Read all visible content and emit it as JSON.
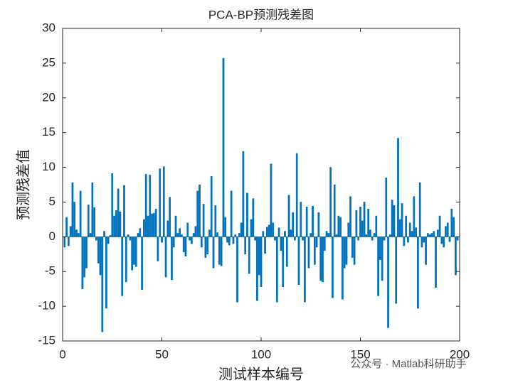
{
  "chart_data": {
    "type": "bar",
    "title": "PCA-BP预测残差图",
    "xlabel": "测试样本编号",
    "ylabel": "预测残差值",
    "watermark": "公众号 · Matlab科研助手",
    "color": "#0072BD",
    "x": [
      1,
      2,
      3,
      4,
      5,
      6,
      7,
      8,
      9,
      10,
      11,
      12,
      13,
      14,
      15,
      16,
      17,
      18,
      19,
      20,
      21,
      22,
      23,
      24,
      25,
      26,
      27,
      28,
      29,
      30,
      31,
      32,
      33,
      34,
      35,
      36,
      37,
      38,
      39,
      40,
      41,
      42,
      43,
      44,
      45,
      46,
      47,
      48,
      49,
      50,
      51,
      52,
      53,
      54,
      55,
      56,
      57,
      58,
      59,
      60,
      61,
      62,
      63,
      64,
      65,
      66,
      67,
      68,
      69,
      70,
      71,
      72,
      73,
      74,
      75,
      76,
      77,
      78,
      79,
      80,
      81,
      82,
      83,
      84,
      85,
      86,
      87,
      88,
      89,
      90,
      91,
      92,
      93,
      94,
      95,
      96,
      97,
      98,
      99,
      100,
      101,
      102,
      103,
      104,
      105,
      106,
      107,
      108,
      109,
      110,
      111,
      112,
      113,
      114,
      115,
      116,
      117,
      118,
      119,
      120,
      121,
      122,
      123,
      124,
      125,
      126,
      127,
      128,
      129,
      130,
      131,
      132,
      133,
      134,
      135,
      136,
      137,
      138,
      139,
      140,
      141,
      142,
      143,
      144,
      145,
      146,
      147,
      148,
      149,
      150,
      151,
      152,
      153,
      154,
      155,
      156,
      157,
      158,
      159,
      160,
      161,
      162,
      163,
      164,
      165,
      166,
      167,
      168,
      169,
      170,
      171,
      172,
      173,
      174,
      175,
      176,
      177,
      178,
      179,
      180,
      181,
      182,
      183,
      184,
      185,
      186,
      187,
      188,
      189,
      190,
      191,
      192,
      193,
      194,
      195,
      196,
      197,
      198,
      199,
      200
    ],
    "values": [
      -1.5,
      2.8,
      -1.3,
      1.5,
      7.8,
      5,
      1,
      0.5,
      6.6,
      -7.5,
      -5.8,
      -4.5,
      4.6,
      0.5,
      7.8,
      4.2,
      -0.5,
      -3.8,
      -5.5,
      -13.7,
      0.8,
      -10.3,
      -1,
      0.2,
      9.1,
      3,
      3.8,
      6.9,
      3.6,
      -8.5,
      7.4,
      -6.5,
      0.3,
      -0.5,
      -4.8,
      -4,
      -4.3,
      0.5,
      1.2,
      -7.6,
      2.5,
      9,
      3,
      8.9,
      3.3,
      3.4,
      4,
      -3.5,
      9.8,
      -0.8,
      10.1,
      -5.8,
      2.3,
      5.7,
      -6.2,
      -1.5,
      3,
      0.5,
      1.2,
      0.3,
      -2.2,
      -2.8,
      2,
      -0.5,
      -1,
      0.5,
      1.5,
      6.6,
      7.5,
      -1.5,
      4.7,
      -3,
      -2.5,
      1,
      8.7,
      -4.5,
      4.5,
      0.6,
      -4,
      -4.2,
      25.7,
      2.8,
      -0.8,
      -1.2,
      6.6,
      -1,
      0.3,
      -9.4,
      0.5,
      2,
      12.3,
      -2.5,
      6.3,
      -5.3,
      2.5,
      5.5,
      -0.5,
      -9.2,
      -5.5,
      -7.2,
      0.8,
      -2.4,
      1.4,
      1.7,
      10.5,
      2,
      -0.5,
      -9.4,
      1.3,
      -2,
      -7.2,
      0.8,
      -4.3,
      6,
      1,
      3.5,
      -0.5,
      12,
      -6.9,
      5,
      -0.5,
      -9.4,
      4.3,
      -4.5,
      0.5,
      4.4,
      -4,
      -1.5,
      3.5,
      -6.3,
      -6.5,
      -2,
      0.8,
      0.5,
      10,
      -8.8,
      7.5,
      0.3,
      3,
      2.8,
      -9,
      -4.5,
      -4,
      2,
      5.8,
      -3,
      -4,
      3.8,
      -0.5,
      4.3,
      2.3,
      5,
      0.3,
      4,
      1,
      -0.5,
      0.5,
      3,
      -8.5,
      -3.3,
      -6.3,
      -0.5,
      8.5,
      -13.1,
      0.3,
      5.3,
      4.5,
      -9.6,
      14.2,
      2.5,
      4.8,
      -1.3,
      3,
      -0.8,
      2,
      0.8,
      5.8,
      1.3,
      -10.3,
      7.8,
      -1.5,
      -0.8,
      -4,
      0.5,
      0.3,
      0.5,
      0.8,
      -7.3,
      1,
      3,
      -1,
      -1.5,
      1.5,
      2,
      -0.7,
      4,
      2.8,
      -5.5,
      -0.5,
      0
    ],
    "xlim": [
      0,
      200
    ],
    "xticks": [
      0,
      50,
      100,
      150,
      200
    ],
    "ylim": [
      -15,
      30
    ],
    "yticks": [
      -15,
      -10,
      -5,
      0,
      5,
      10,
      15,
      20,
      25,
      30
    ]
  }
}
